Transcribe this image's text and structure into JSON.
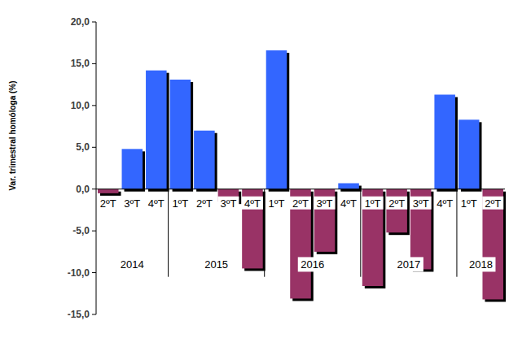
{
  "chart_data": {
    "type": "bar",
    "y_label": "Var. trimestral homóloga (%)",
    "categories": [
      "2ºT",
      "3ºT",
      "4ºT",
      "1ºT",
      "2ºT",
      "3ºT",
      "4ºT",
      "1ºT",
      "2ºT",
      "3ºT",
      "4ºT",
      "1ºT",
      "2ºT",
      "3ºT",
      "4ºT",
      "1ºT",
      "2ºT"
    ],
    "category_groups": [
      {
        "label": "2014",
        "count": 3
      },
      {
        "label": "2015",
        "count": 4
      },
      {
        "label": "2016",
        "count": 4
      },
      {
        "label": "2017",
        "count": 4
      },
      {
        "label": "2018",
        "count": 2
      }
    ],
    "values": [
      -0.5,
      4.8,
      14.2,
      13.1,
      7.0,
      -1.5,
      -9.5,
      16.6,
      -13.1,
      -7.5,
      0.7,
      -11.6,
      -5.2,
      -9.6,
      11.3,
      8.3,
      -13.2
    ],
    "colors": [
      "#993366",
      "#3366ff",
      "#3366ff",
      "#3366ff",
      "#3366ff",
      "#993366",
      "#993366",
      "#3366ff",
      "#993366",
      "#993366",
      "#3366ff",
      "#993366",
      "#993366",
      "#993366",
      "#3366ff",
      "#3366ff",
      "#993366"
    ],
    "ylim": [
      -15,
      20
    ],
    "yticks": [
      {
        "value": -15,
        "label": "-15,0"
      },
      {
        "value": -10,
        "label": "-10,0"
      },
      {
        "value": -5,
        "label": "-5,0"
      },
      {
        "value": 0,
        "label": "0,0"
      },
      {
        "value": 5,
        "label": "5,0"
      },
      {
        "value": 10,
        "label": "10,0"
      },
      {
        "value": 15,
        "label": "15,0"
      },
      {
        "value": 20,
        "label": "20,0"
      }
    ],
    "grid": false
  }
}
